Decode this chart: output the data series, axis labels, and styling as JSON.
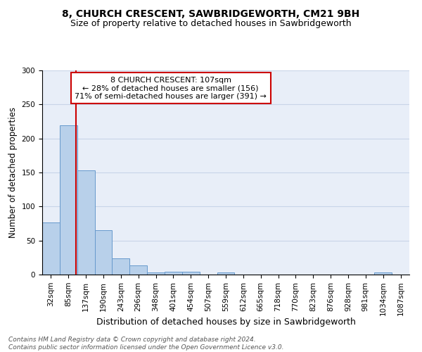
{
  "title1": "8, CHURCH CRESCENT, SAWBRIDGEWORTH, CM21 9BH",
  "title2": "Size of property relative to detached houses in Sawbridgeworth",
  "xlabel": "Distribution of detached houses by size in Sawbridgeworth",
  "ylabel": "Number of detached properties",
  "footnote": "Contains HM Land Registry data © Crown copyright and database right 2024.\nContains public sector information licensed under the Open Government Licence v3.0.",
  "bin_labels": [
    "32sqm",
    "85sqm",
    "137sqm",
    "190sqm",
    "243sqm",
    "296sqm",
    "348sqm",
    "401sqm",
    "454sqm",
    "507sqm",
    "559sqm",
    "612sqm",
    "665sqm",
    "718sqm",
    "770sqm",
    "823sqm",
    "876sqm",
    "928sqm",
    "981sqm",
    "1034sqm",
    "1087sqm"
  ],
  "bar_heights": [
    77,
    219,
    153,
    65,
    24,
    13,
    3,
    4,
    4,
    0,
    3,
    0,
    0,
    0,
    0,
    0,
    0,
    0,
    0,
    3,
    0
  ],
  "bar_color": "#b8d0ea",
  "bar_edge_color": "#6699cc",
  "grid_color": "#c8d4e8",
  "background_color": "#e8eef8",
  "red_line_x": 1.42,
  "annotation_text": "8 CHURCH CRESCENT: 107sqm\n← 28% of detached houses are smaller (156)\n71% of semi-detached houses are larger (391) →",
  "annotation_box_color": "#ffffff",
  "annotation_edge_color": "#cc0000",
  "annotation_text_color": "#000000",
  "red_line_color": "#cc0000",
  "ylim": [
    0,
    300
  ],
  "title1_fontsize": 10,
  "title2_fontsize": 9,
  "xlabel_fontsize": 9,
  "ylabel_fontsize": 8.5,
  "tick_fontsize": 7.5,
  "annotation_fontsize": 8,
  "footnote_fontsize": 6.5
}
